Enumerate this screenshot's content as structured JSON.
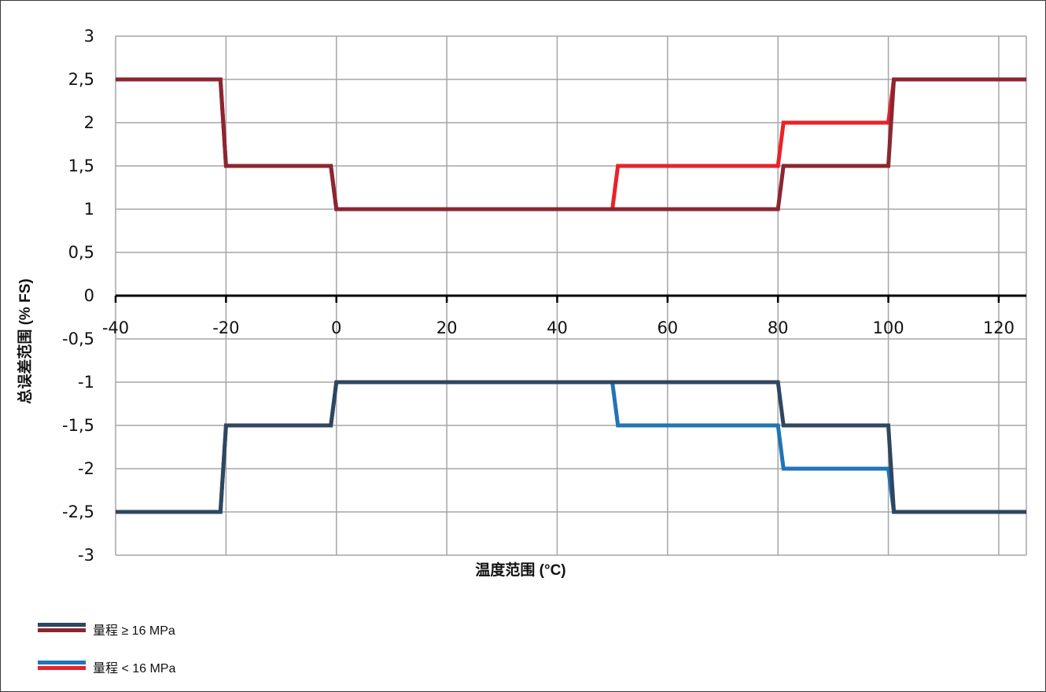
{
  "chart_data": {
    "type": "line",
    "title": "",
    "xlabel": "温度范围 (°C)",
    "ylabel": "总误差范围 (% FS)",
    "xlim": [
      -40,
      125
    ],
    "ylim": [
      -3,
      3
    ],
    "grid": true,
    "legend_position": "bottom-left",
    "x_ticks": [
      -40,
      -20,
      0,
      20,
      40,
      60,
      80,
      100,
      120
    ],
    "x_tick_labels": [
      "-40",
      "-20",
      "0",
      "20",
      "40",
      "60",
      "80",
      "100",
      "120"
    ],
    "y_ticks": [
      3,
      2.5,
      2,
      1.5,
      1,
      0.5,
      0,
      -0.5,
      -1,
      -1.5,
      -2,
      -2.5,
      -3
    ],
    "y_tick_labels": [
      "3",
      "2,5",
      "2",
      "1,5",
      "1",
      "0,5",
      "0",
      "-0,5",
      "-1",
      "-1,5",
      "-2",
      "-2,5",
      "-3"
    ],
    "legend": [
      {
        "label": "量程 ≥ 16 MPa",
        "colors": [
          "#2f4661",
          "#8b2630"
        ]
      },
      {
        "label": "量程 < 16 MPa",
        "colors": [
          "#2174b5",
          "#e8232a"
        ]
      }
    ],
    "series": [
      {
        "group": "量程 < 16 MPa",
        "color": "#e8232a",
        "x": [
          -40,
          -21,
          -20,
          -1,
          0,
          50,
          51,
          80,
          81,
          100,
          101,
          125
        ],
        "y": [
          2.5,
          2.5,
          1.5,
          1.5,
          1,
          1,
          1.5,
          1.5,
          2,
          2,
          2.5,
          2.5
        ]
      },
      {
        "group": "量程 < 16 MPa",
        "color": "#2174b5",
        "x": [
          -40,
          -21,
          -20,
          -1,
          0,
          50,
          51,
          80,
          81,
          100,
          101,
          125
        ],
        "y": [
          -2.5,
          -2.5,
          -1.5,
          -1.5,
          -1,
          -1,
          -1.5,
          -1.5,
          -2,
          -2,
          -2.5,
          -2.5
        ]
      },
      {
        "group": "量程 ≥ 16 MPa",
        "color": "#8b2630",
        "x": [
          -40,
          -21,
          -20,
          -1,
          0,
          80,
          81,
          100,
          101,
          125
        ],
        "y": [
          2.5,
          2.5,
          1.5,
          1.5,
          1,
          1,
          1.5,
          1.5,
          2.5,
          2.5
        ]
      },
      {
        "group": "量程 ≥ 16 MPa",
        "color": "#2f4661",
        "x": [
          -40,
          -21,
          -20,
          -1,
          0,
          80,
          81,
          100,
          101,
          125
        ],
        "y": [
          -2.5,
          -2.5,
          -1.5,
          -1.5,
          -1,
          -1,
          -1.5,
          -1.5,
          -2.5,
          -2.5
        ]
      }
    ]
  }
}
